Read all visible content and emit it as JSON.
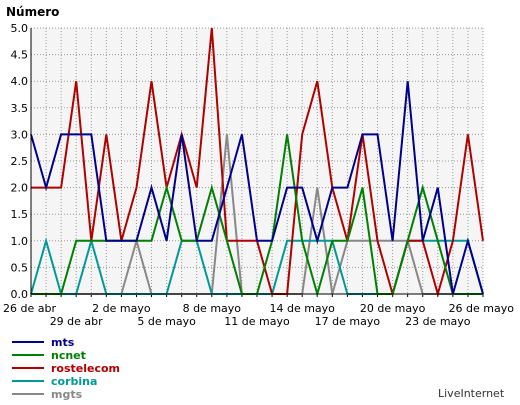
{
  "chart_data": {
    "type": "line",
    "ylabel": "Número",
    "ylim": [
      0,
      5
    ],
    "y_ticks": [
      "0.0",
      "0.5",
      "1.0",
      "1.5",
      "2.0",
      "2.5",
      "3.0",
      "3.5",
      "4.0",
      "4.5",
      "5.0"
    ],
    "x_tick_labels_row1": [
      "26 de abr",
      "2 de mayo",
      "8 de mayo",
      "14 de mayo",
      "20 de mayo",
      "26 de mayo"
    ],
    "x_tick_labels_row2": [
      "29 de abr",
      "5 de mayo",
      "11 de mayo",
      "17 de mayo",
      "23 de mayo"
    ],
    "grid": true,
    "legend_position": "bottom-left",
    "series": [
      {
        "name": "mts",
        "color": "#00008b",
        "values": [
          3,
          2,
          3,
          3,
          3,
          1,
          1,
          1,
          2,
          1,
          3,
          1,
          1,
          2,
          3,
          1,
          1,
          2,
          2,
          1,
          2,
          2,
          3,
          3,
          1,
          4,
          1,
          2,
          0,
          1,
          0
        ]
      },
      {
        "name": "ncnet",
        "color": "#008000",
        "values": [
          0,
          0,
          0,
          1,
          1,
          1,
          1,
          1,
          1,
          2,
          1,
          1,
          2,
          1,
          0,
          0,
          1,
          3,
          1,
          0,
          1,
          1,
          2,
          0,
          0,
          1,
          2,
          1,
          0,
          0,
          0
        ]
      },
      {
        "name": "rostelecom",
        "color": "#b00000",
        "values": [
          2,
          2,
          2,
          4,
          1,
          3,
          1,
          2,
          4,
          2,
          3,
          2,
          5,
          1,
          1,
          1,
          0,
          0,
          3,
          4,
          2,
          1,
          3,
          1,
          0,
          1,
          1,
          0,
          1,
          3,
          1
        ]
      },
      {
        "name": "corbina",
        "color": "#009999",
        "values": [
          0,
          1,
          0,
          0,
          1,
          0,
          0,
          0,
          0,
          0,
          1,
          1,
          0,
          0,
          0,
          0,
          0,
          1,
          1,
          1,
          1,
          0,
          0,
          0,
          0,
          1,
          1,
          1,
          1,
          1,
          0
        ]
      },
      {
        "name": "mgts",
        "color": "#888888",
        "values": [
          0,
          0,
          0,
          0,
          0,
          0,
          0,
          1,
          0,
          0,
          0,
          0,
          0,
          3,
          0,
          0,
          0,
          0,
          0,
          2,
          0,
          1,
          1,
          1,
          1,
          1,
          0,
          0,
          0,
          0,
          0
        ]
      }
    ]
  },
  "footer": {
    "brand": "LiveInternet"
  }
}
